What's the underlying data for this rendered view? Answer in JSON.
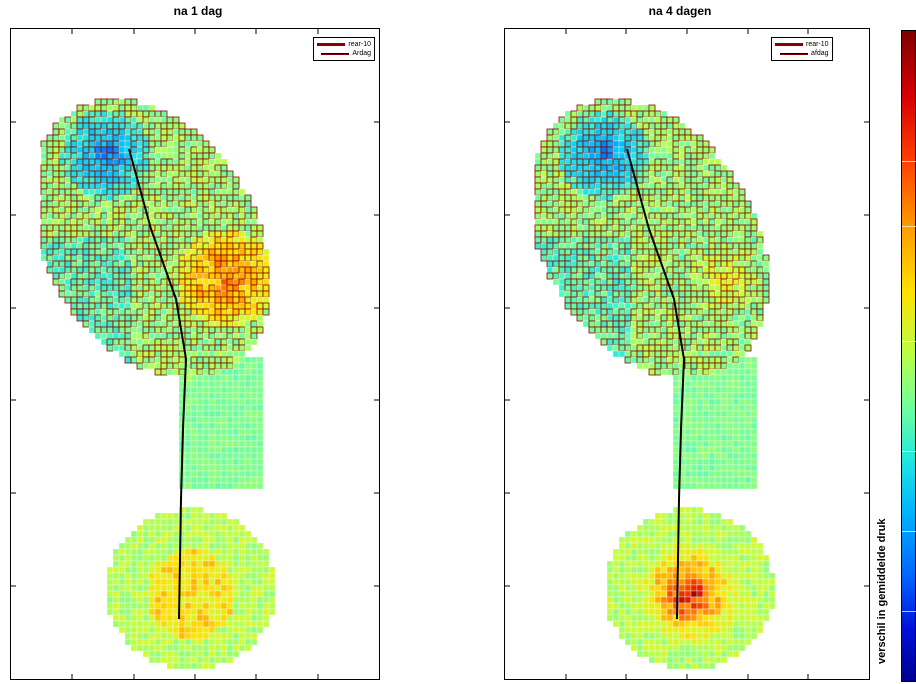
{
  "panels": [
    {
      "title": "na 1 dag",
      "legend": [
        "rear-10",
        "Ardag"
      ],
      "scheme": "day1"
    },
    {
      "title": "na 4 dagen",
      "legend": [
        "rear-10",
        "afdag"
      ],
      "scheme": "day4"
    }
  ],
  "colorbar": {
    "label": "verschil in gemiddelde druk",
    "colors": [
      "#7f0000",
      "#d40000",
      "#ff4000",
      "#ff9a00",
      "#ffe000",
      "#b7ff48",
      "#6fffa0",
      "#20e8e0",
      "#00b4ff",
      "#0064ff",
      "#0010d8",
      "#00008f"
    ]
  },
  "chart_data": [
    {
      "type": "heatmap",
      "title": "na 1 dag",
      "legend": [
        "rear-10",
        "Ardag"
      ],
      "description_series": [
        {
          "name": "rear-10"
        },
        {
          "name": "Ardag"
        }
      ]
    },
    {
      "type": "heatmap",
      "title": "na 4 dagen",
      "legend": [
        "rear-10",
        "afdag"
      ],
      "description_series": [
        {
          "name": "rear-10"
        },
        {
          "name": "afdag"
        }
      ]
    }
  ]
}
